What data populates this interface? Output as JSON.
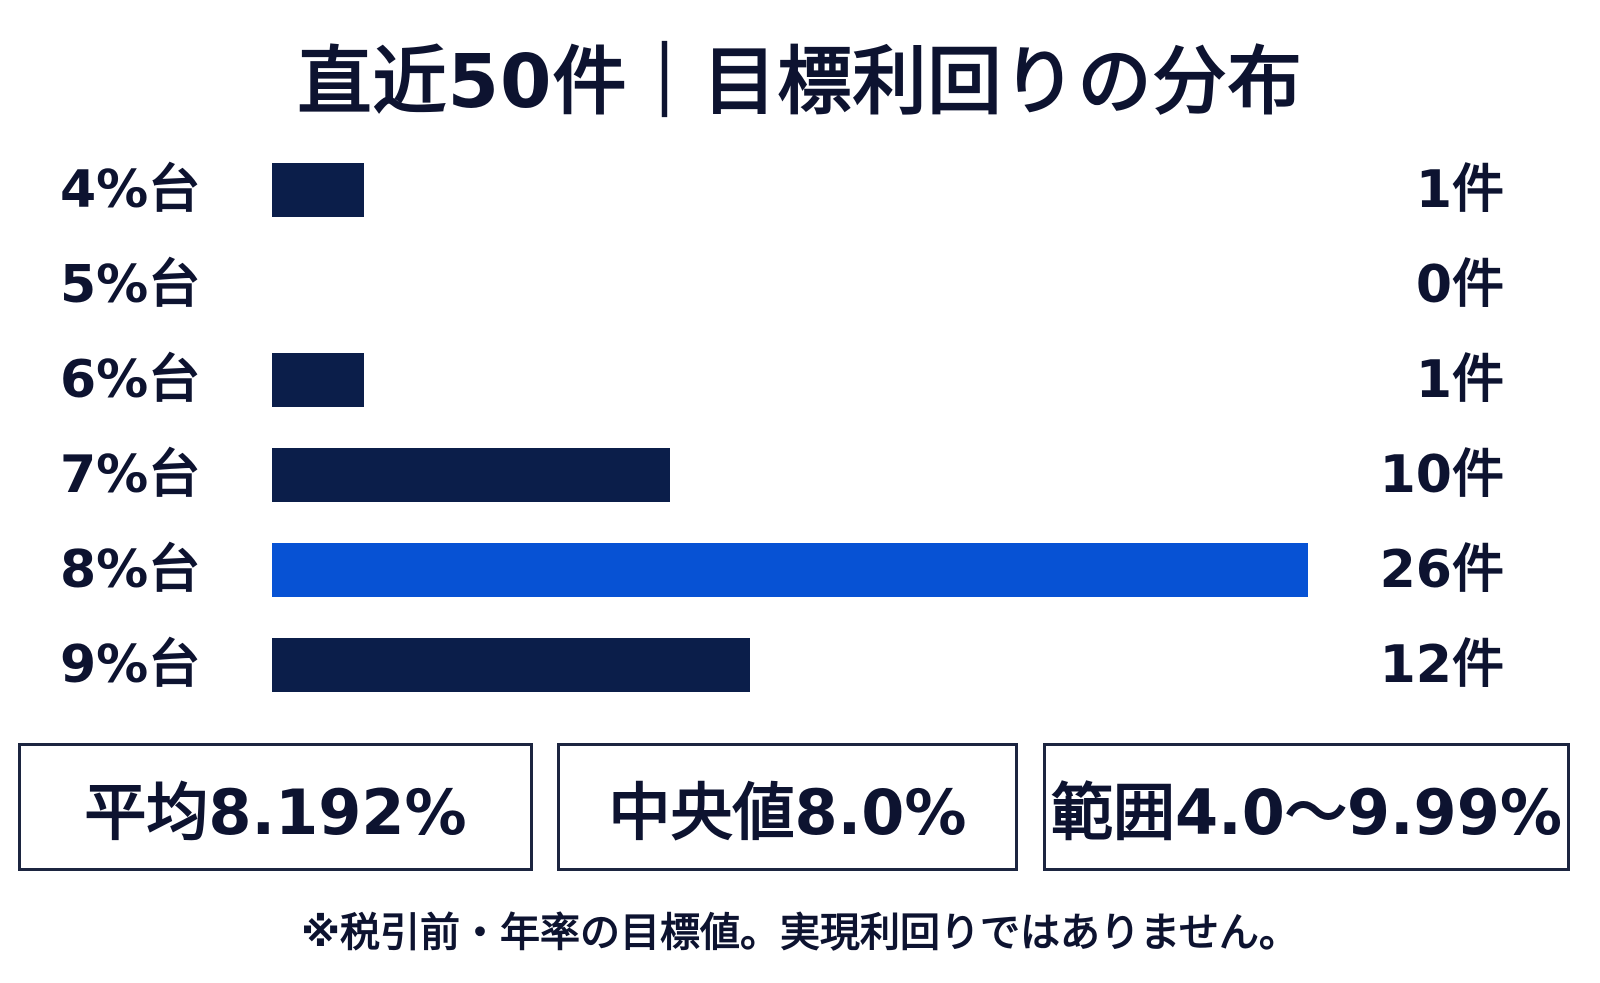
{
  "chart_data": {
    "type": "bar",
    "orientation": "horizontal",
    "title": "直近50件｜目標利回りの分布",
    "categories": [
      "4%台",
      "5%台",
      "6%台",
      "7%台",
      "8%台",
      "9%台"
    ],
    "values": [
      1,
      0,
      1,
      10,
      26,
      12
    ],
    "value_labels": [
      "1件",
      "0件",
      "1件",
      "10件",
      "26件",
      "12件"
    ],
    "unit": "件",
    "highlight_category": "8%台",
    "colors": {
      "default": "#0b1e4a",
      "highlight": "#0752d4"
    },
    "xlim": [
      0,
      26
    ],
    "grid": false
  },
  "stats": {
    "average": "平均8.192%",
    "median": "中央値8.0%",
    "range": "範囲4.0〜9.99%"
  },
  "footnote": "※税引前・年率の目標値。実現利回りではありません。"
}
